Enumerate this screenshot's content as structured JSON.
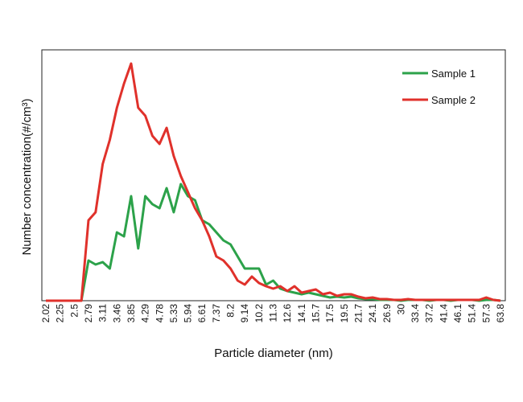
{
  "chart_data": {
    "type": "line",
    "xlabel": "Particle diameter (nm)",
    "ylabel": "Number concentration(#/cm³)",
    "categories": [
      "2.02",
      null,
      "2.25",
      null,
      "2.5",
      null,
      "2.79",
      null,
      "3.11",
      null,
      "3.46",
      null,
      "3.85",
      null,
      "4.29",
      null,
      "4.78",
      null,
      "5.33",
      null,
      "5.94",
      null,
      "6.61",
      null,
      "7.37",
      null,
      "8.2",
      null,
      "9.14",
      null,
      "10.2",
      null,
      "11.3",
      null,
      "12.6",
      null,
      "14.1",
      null,
      "15.7",
      null,
      "17.5",
      null,
      "19.5",
      null,
      "21.7",
      null,
      "24.1",
      null,
      "26.9",
      null,
      "30",
      null,
      "33.4",
      null,
      "37.2",
      null,
      "41.4",
      null,
      "46.1",
      null,
      "51.4",
      null,
      "57.3",
      null,
      "63.8"
    ],
    "series": [
      {
        "name": "Sample 1",
        "color": "#2ca24a",
        "values": [
          0,
          0,
          0,
          0,
          0,
          0,
          50,
          45,
          48,
          40,
          85,
          80,
          130,
          65,
          130,
          120,
          115,
          140,
          110,
          145,
          130,
          125,
          100,
          95,
          85,
          75,
          70,
          55,
          40,
          40,
          40,
          20,
          25,
          15,
          12,
          10,
          8,
          10,
          8,
          6,
          4,
          5,
          4,
          5,
          3,
          2,
          2,
          1,
          1,
          1,
          0,
          1,
          1,
          1,
          0,
          1,
          1,
          0,
          1,
          1,
          1,
          0,
          1,
          1,
          0
        ]
      },
      {
        "name": "Sample 2",
        "color": "#e0312b",
        "values": [
          0,
          0,
          0,
          0,
          0,
          0,
          100,
          110,
          170,
          200,
          240,
          270,
          295,
          240,
          230,
          205,
          195,
          215,
          180,
          155,
          135,
          115,
          100,
          80,
          55,
          50,
          40,
          25,
          20,
          30,
          22,
          18,
          15,
          18,
          12,
          18,
          10,
          12,
          14,
          8,
          10,
          6,
          8,
          8,
          5,
          3,
          4,
          2,
          2,
          1,
          1,
          2,
          1,
          1,
          1,
          1,
          1,
          1,
          1,
          1,
          1,
          1,
          4,
          1,
          0
        ]
      }
    ],
    "ylim": [
      0,
      312
    ],
    "legend": "upper right"
  }
}
